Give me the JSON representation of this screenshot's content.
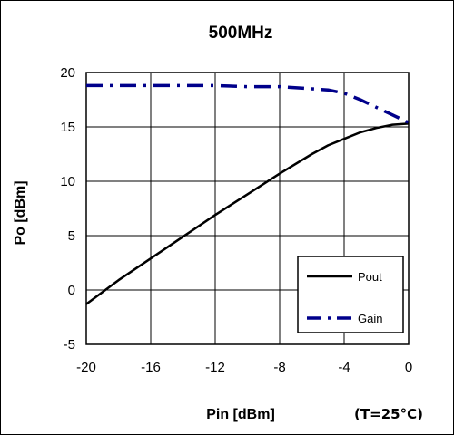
{
  "chart_data": {
    "type": "line",
    "title": "500MHz",
    "xlabel": "Pin [dBm]",
    "ylabel": "Po [dBm]",
    "note": "(T=25°C)",
    "xlim": [
      -20,
      0
    ],
    "ylim": [
      -5,
      20
    ],
    "xticks": [
      -20,
      -16,
      -12,
      -8,
      -4,
      0
    ],
    "yticks": [
      -5,
      0,
      5,
      10,
      15,
      20
    ],
    "grid": true,
    "legend": "bottom-right",
    "series": [
      {
        "name": "Pout",
        "color": "#000000",
        "style": "solid",
        "x": [
          -20,
          -18,
          -16,
          -14,
          -12,
          -10,
          -8,
          -6,
          -5,
          -4,
          -3,
          -2,
          -1,
          0
        ],
        "y": [
          -1.3,
          0.9,
          2.9,
          4.9,
          6.9,
          8.8,
          10.7,
          12.5,
          13.3,
          13.9,
          14.5,
          14.9,
          15.2,
          15.3
        ]
      },
      {
        "name": "Gain",
        "color": "#00008B",
        "style": "dashdot",
        "x": [
          -20,
          -18,
          -16,
          -14,
          -12,
          -10,
          -8,
          -6,
          -5,
          -4,
          -3,
          -2,
          -1,
          0
        ],
        "y": [
          18.8,
          18.8,
          18.8,
          18.8,
          18.8,
          18.7,
          18.7,
          18.5,
          18.4,
          18.1,
          17.5,
          16.8,
          16.1,
          15.4
        ]
      }
    ]
  }
}
